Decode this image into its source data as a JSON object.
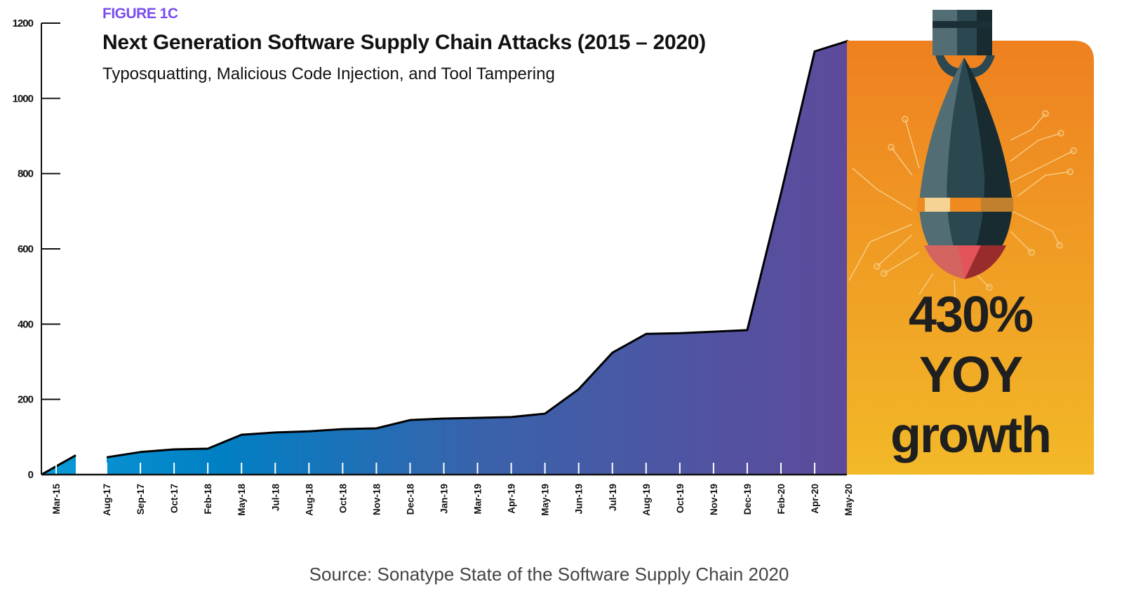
{
  "figure_label": "FIGURE 1C",
  "chart_data": {
    "type": "area",
    "title": "Next Generation Software Supply Chain Attacks (2015 – 2020)",
    "subtitle": "Typosquatting, Malicious Code Injection, and Tool Tampering",
    "xlabel": "",
    "ylabel": "",
    "ylim": [
      0,
      1200
    ],
    "yticks": [
      "0",
      "200",
      "400",
      "600",
      "800",
      "1000",
      "1200"
    ],
    "grid": false,
    "categories": [
      "Mar-15",
      "Aug-17",
      "Sep-17",
      "Oct-17",
      "Feb-18",
      "May-18",
      "Jul-18",
      "Aug-18",
      "Oct-18",
      "Nov-18",
      "Dec-18",
      "Jan-19",
      "Mar-19",
      "Apr-19",
      "May-19",
      "Jun-19",
      "Jul-19",
      "Aug-19",
      "Oct-19",
      "Nov-19",
      "Dec-19",
      "Feb-20",
      "Apr-20",
      "May-20"
    ],
    "values": [
      22,
      46,
      60,
      67,
      69,
      106,
      112,
      115,
      121,
      123,
      145,
      149,
      151,
      153,
      162,
      227,
      324,
      374,
      376,
      380,
      384,
      747,
      1125,
      1153
    ],
    "fill_gradient": [
      "#0a9ad8",
      "#0080c4",
      "#3a62ab",
      "#5e4a9b"
    ],
    "line_color": "#000000"
  },
  "callout": {
    "line1": "430%",
    "line2": "YOY",
    "line3": "growth",
    "icon": "bomb-icon",
    "colors": {
      "top": "#ee8020",
      "bottom": "#f2b928"
    }
  },
  "source": "Source: Sonatype State of the Software Supply Chain 2020"
}
